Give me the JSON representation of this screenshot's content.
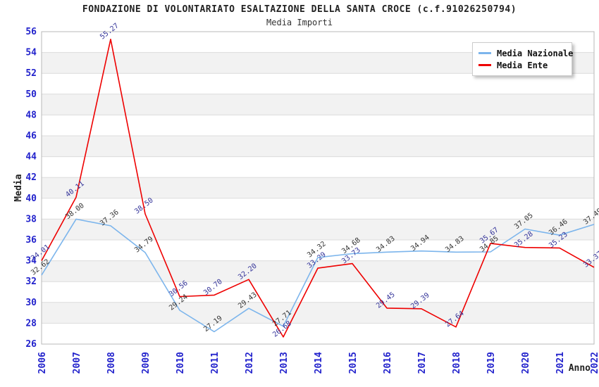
{
  "title": "FONDAZIONE DI VOLONTARIATO ESALTAZIONE DELLA SANTA CROCE (c.f.91026250794)",
  "subtitle": "Media Importi",
  "legend": {
    "items": [
      {
        "label": "Media Nazionale",
        "color": "#7cb5ec"
      },
      {
        "label": "Media Ente",
        "color": "#ee0000"
      }
    ]
  },
  "colors": {
    "tick_label": "#2222cc",
    "band_fill": "#f2f2f2",
    "grid_line": "#dcdcdc",
    "plot_border": "#b8b8b8",
    "axis_title": "#222222"
  },
  "chart_data": {
    "type": "line",
    "title": "FONDAZIONE DI VOLONTARIATO ESALTAZIONE DELLA SANTA CROCE (c.f.91026250794)",
    "subtitle": "Media Importi",
    "xlabel": "Anno",
    "ylabel": "Media",
    "x": [
      "2006",
      "2007",
      "2008",
      "2009",
      "2010",
      "2011",
      "2012",
      "2013",
      "2014",
      "2015",
      "2016",
      "2017",
      "2018",
      "2019",
      "2020",
      "2021",
      "2022"
    ],
    "series": [
      {
        "name": "Media Nazionale",
        "color": "#7cb5ec",
        "label_color": "#333333",
        "values": [
          32.62,
          38.0,
          37.36,
          34.79,
          29.24,
          27.19,
          29.43,
          27.71,
          34.32,
          34.68,
          34.83,
          34.94,
          34.83,
          34.85,
          37.05,
          36.46,
          37.49
        ]
      },
      {
        "name": "Media Ente",
        "color": "#ee0000",
        "label_color": "#333399",
        "values": [
          34.01,
          40.11,
          55.27,
          38.5,
          30.56,
          30.7,
          32.2,
          26.68,
          33.29,
          33.73,
          29.45,
          29.39,
          27.64,
          35.67,
          35.28,
          35.23,
          33.37
        ]
      }
    ],
    "ylim": [
      26,
      56
    ],
    "ytick_step": 2,
    "grid": "horizontal-bands",
    "legend_position": "top-right"
  }
}
